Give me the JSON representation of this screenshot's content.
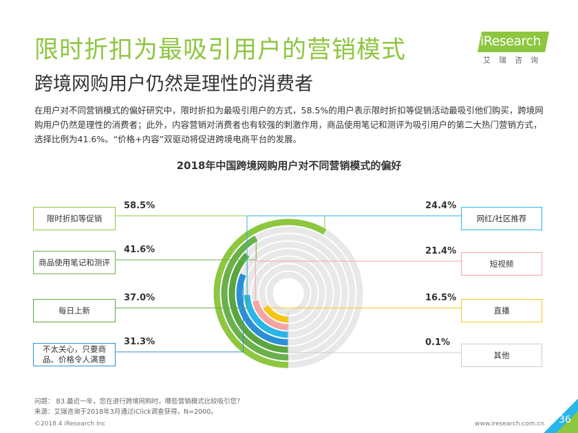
{
  "header": {
    "title": "限时折扣为最吸引用户的营销模式",
    "subtitle": "跨境网购用户仍然是理性的消费者",
    "logo_text": "iResearch",
    "logo_sub": "艾瑞咨询"
  },
  "intro": "在用户对不同营销模式的偏好研究中，限时折扣为最吸引用户的方式，58.5%的用户表示限时折扣等促销活动最吸引他们购买，跨境网购用户仍然是理性的消费者；此外，内容营销对消费者也有较强的刺激作用，商品使用笔记和测评为吸引用户的第二大热门营销方式，选择比例为41.6%。“价格+内容”双驱动将促进跨境电商平台的发展。",
  "chart_data": {
    "type": "radial-bar",
    "title": "2018年中国跨境网购用户对不同营销模式的偏好",
    "unit": "%",
    "max": 100,
    "categories": [
      "限时折扣等促销",
      "商品使用笔记和测评",
      "每日上新",
      "不太关心，只要商品、价格令人满意",
      "网红/社区推荐",
      "短视频",
      "直播",
      "其他"
    ],
    "values": [
      58.5,
      41.6,
      37.0,
      31.3,
      24.4,
      21.4,
      16.5,
      0.1
    ],
    "value_labels": [
      "58.5%",
      "41.6%",
      "37.0%",
      "31.3%",
      "24.4%",
      "21.4%",
      "16.5%",
      "0.1%"
    ],
    "colors": [
      "#8dc63f",
      "#6ab04c",
      "#5aa63e",
      "#2b8fd6",
      "#29b6e8",
      "#f5a3a3",
      "#f5c518",
      "#cccccc"
    ],
    "track_color": "#e8e8e8"
  },
  "footnotes": {
    "question": "问题： B3.最近一年，您在进行跨境网购时，哪些营销模式比较吸引您？",
    "source": "来源：艾瑞咨询于2018年3月通过iClick调查获得，N=2000。"
  },
  "footer": {
    "copyright": "©2018.4 iResearch Inc",
    "website": "www.iresearch.com.cn",
    "page": "36"
  }
}
